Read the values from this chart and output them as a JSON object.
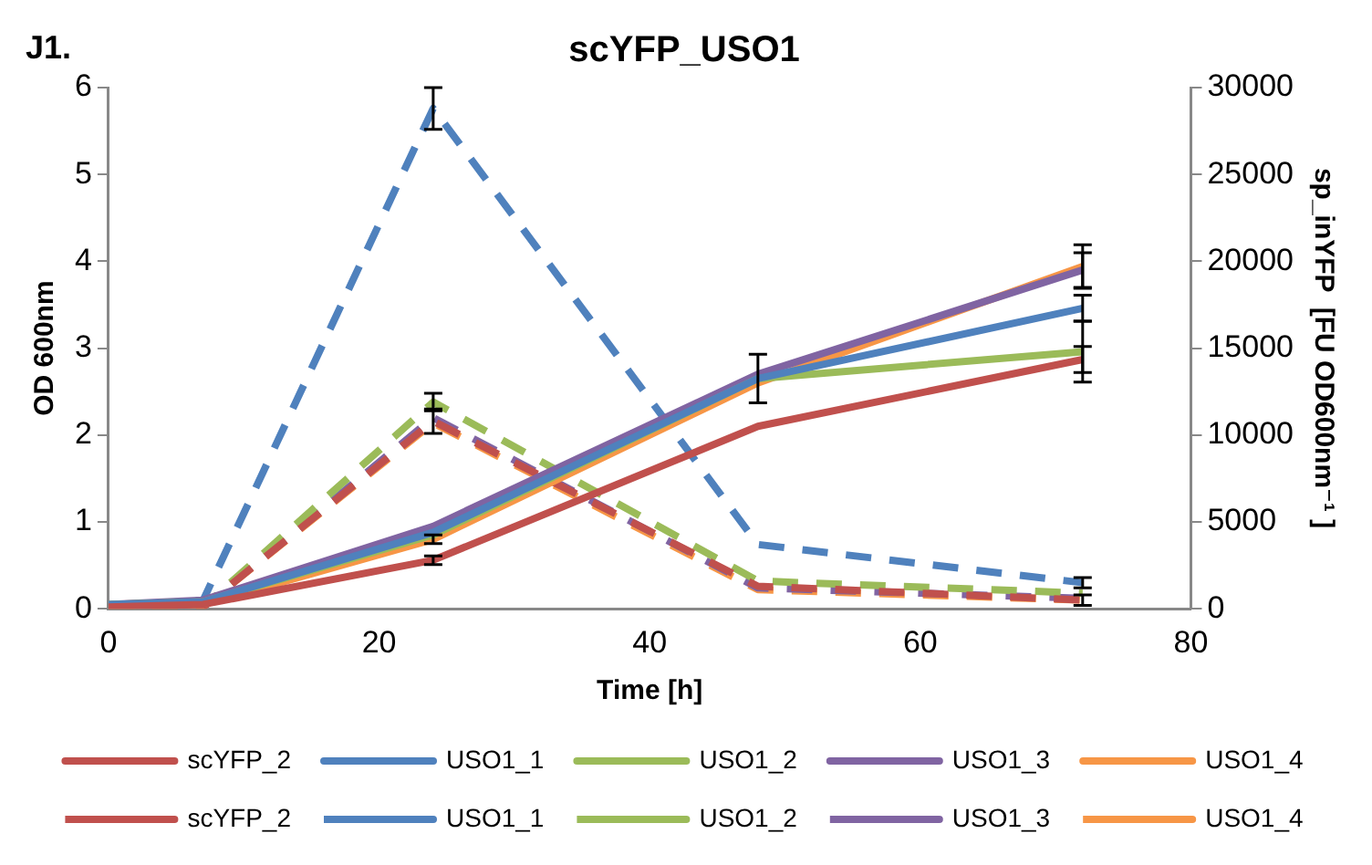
{
  "chart_data": {
    "type": "line",
    "title": "scYFP_USO1",
    "xlabel": "Time [h]",
    "ylabel": "OD 600nm",
    "y2label": "sp_inYFP  [FU OD600nm⁻¹ ]",
    "annotations": [
      "J1."
    ],
    "x": [
      0,
      7,
      24,
      48,
      72
    ],
    "xlim": [
      0,
      80
    ],
    "xticks": [
      0,
      20,
      40,
      60,
      80
    ],
    "ylim": [
      0,
      6
    ],
    "yticks": [
      0,
      1,
      2,
      3,
      4,
      5,
      6
    ],
    "y2lim": [
      0,
      30000
    ],
    "y2ticks": [
      0,
      5000,
      10000,
      15000,
      20000,
      25000,
      30000
    ],
    "grid": false,
    "legend": "bottom",
    "marker": "none",
    "series": [
      {
        "name": "scYFP_2",
        "color": "#c0504d",
        "line_style": "solid",
        "values": [
          0.02,
          0.05,
          0.56,
          2.1,
          2.87
        ],
        "errors": [
          null,
          null,
          0.05,
          null,
          0.15
        ]
      },
      {
        "name": "USO1_1",
        "color": "#4f81bd",
        "line_style": "solid",
        "values": [
          0.05,
          0.08,
          0.88,
          2.65,
          3.46
        ],
        "errors": [
          null,
          null,
          null,
          null,
          0.15
        ]
      },
      {
        "name": "USO1_2",
        "color": "#9bbb59",
        "line_style": "solid",
        "values": [
          0.05,
          0.08,
          0.85,
          2.65,
          2.96
        ],
        "errors": [
          null,
          null,
          null,
          0.28,
          0.35
        ]
      },
      {
        "name": "USO1_3",
        "color": "#8064a2",
        "line_style": "solid",
        "values": [
          0.05,
          0.1,
          0.95,
          2.7,
          3.9
        ],
        "errors": [
          null,
          null,
          null,
          null,
          0.2
        ]
      },
      {
        "name": "USO1_4",
        "color": "#f79646",
        "line_style": "solid",
        "values": [
          0.03,
          0.05,
          0.8,
          2.6,
          3.94
        ],
        "errors": [
          null,
          null,
          0.05,
          null,
          0.25
        ]
      },
      {
        "name": "scYFP_2",
        "color": "#c0504d",
        "line_style": "dashed",
        "axis": "y2",
        "values": [
          100,
          100,
          10800,
          1300,
          500
        ],
        "errors": [
          null,
          null,
          700,
          null,
          300
        ]
      },
      {
        "name": "USO1_1",
        "color": "#4f81bd",
        "line_style": "dashed",
        "axis": "y2",
        "values": [
          100,
          500,
          28800,
          3700,
          1500
        ],
        "errors": [
          null,
          null,
          1200,
          null,
          300
        ]
      },
      {
        "name": "USO1_2",
        "color": "#9bbb59",
        "line_style": "dashed",
        "axis": "y2",
        "values": [
          100,
          100,
          11900,
          1600,
          900
        ],
        "errors": [
          null,
          null,
          500,
          null,
          null
        ]
      },
      {
        "name": "USO1_3",
        "color": "#8064a2",
        "line_style": "dashed",
        "axis": "y2",
        "values": [
          100,
          100,
          11000,
          1200,
          600
        ]
      },
      {
        "name": "USO1_4",
        "color": "#f79646",
        "line_style": "dashed",
        "axis": "y2",
        "values": [
          100,
          100,
          10700,
          1100,
          500
        ]
      }
    ]
  }
}
